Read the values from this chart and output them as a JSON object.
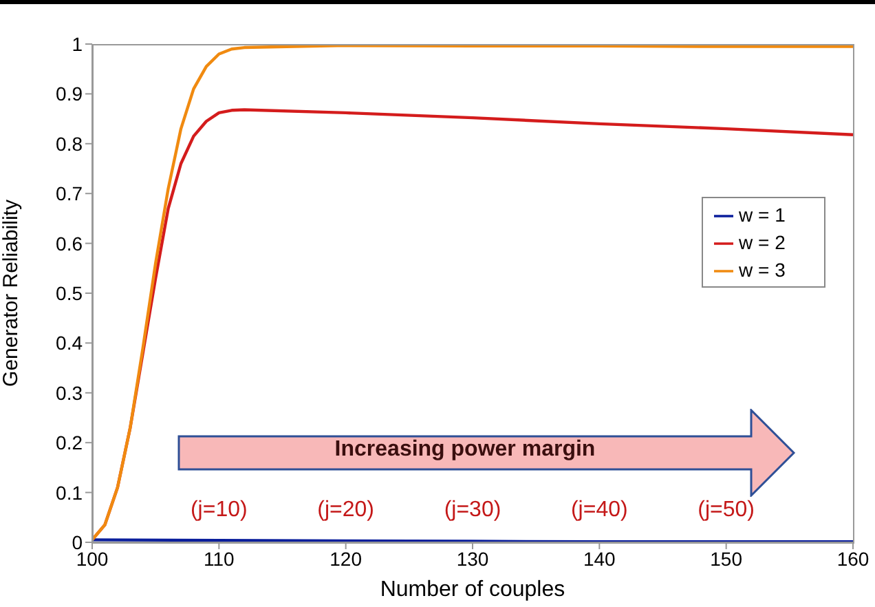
{
  "chart_data": {
    "type": "line",
    "xlabel": "Number of couples",
    "ylabel": "Generator Reliability",
    "xlim": [
      100,
      160
    ],
    "xticks": [
      100,
      110,
      120,
      130,
      140,
      150,
      160
    ],
    "ylim": [
      0,
      1
    ],
    "yticks": [
      0,
      0.1,
      0.2,
      0.3,
      0.4,
      0.5,
      0.6,
      0.7,
      0.8,
      0.9,
      1
    ],
    "legend": "right",
    "grid": false,
    "marker": "none",
    "line_style": "solid",
    "series": [
      {
        "name": "w = 1",
        "color": "#0a1e9c",
        "x": [
          100,
          110,
          120,
          130,
          140,
          150,
          160
        ],
        "values": [
          0.005,
          0.004,
          0.003,
          0.002,
          0.001,
          0.001,
          0.001
        ]
      },
      {
        "name": "w = 2",
        "color": "#d41c1c",
        "x": [
          100,
          101,
          102,
          103,
          104,
          105,
          106,
          107,
          108,
          109,
          110,
          111,
          112,
          120,
          130,
          140,
          150,
          160
        ],
        "values": [
          0.005,
          0.035,
          0.11,
          0.23,
          0.38,
          0.53,
          0.67,
          0.76,
          0.815,
          0.845,
          0.862,
          0.867,
          0.868,
          0.862,
          0.852,
          0.84,
          0.83,
          0.818
        ]
      },
      {
        "name": "w = 3",
        "color": "#f08a10",
        "x": [
          100,
          101,
          102,
          103,
          104,
          105,
          106,
          107,
          108,
          109,
          110,
          111,
          112,
          120,
          130,
          140,
          150,
          160
        ],
        "values": [
          0.005,
          0.035,
          0.11,
          0.23,
          0.39,
          0.56,
          0.71,
          0.83,
          0.91,
          0.955,
          0.98,
          0.99,
          0.993,
          0.997,
          0.996,
          0.996,
          0.995,
          0.995
        ]
      }
    ],
    "annotations": [
      "Increasing power margin",
      "(j=10)",
      "(j=20)",
      "(j=30)",
      "(j=40)",
      "(j=50)"
    ]
  }
}
